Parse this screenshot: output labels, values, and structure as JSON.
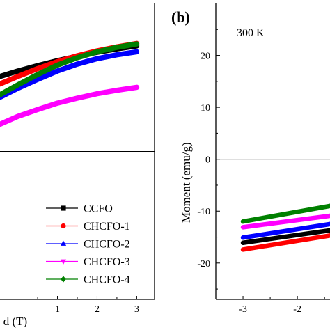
{
  "chart_data": [
    {
      "type": "line",
      "panel": "",
      "xlabel": "d (T)",
      "ylabel": "",
      "xlim": [
        -0.45,
        3.45
      ],
      "ylim": [
        -30,
        30
      ],
      "x_ticks": [
        1,
        2,
        3
      ],
      "x_tick_labels": [
        "1",
        "2",
        "3"
      ],
      "grid": false,
      "legend_position": "bottom-right",
      "series": [
        {
          "name": "CCFO",
          "color": "#000000",
          "marker": "square",
          "x": [
            -0.45,
            0,
            0.5,
            1,
            1.5,
            2,
            2.5,
            3
          ],
          "y": [
            15.2,
            16.3,
            17.4,
            18.4,
            19.3,
            20.1,
            20.8,
            21.4
          ]
        },
        {
          "name": "CHCFO-1",
          "color": "#ff0000",
          "marker": "circle",
          "x": [
            -0.45,
            0,
            0.5,
            1,
            1.5,
            2,
            2.5,
            3
          ],
          "y": [
            13.7,
            15.2,
            16.8,
            18.2,
            19.4,
            20.4,
            21.2,
            21.9
          ]
        },
        {
          "name": "CHCFO-2",
          "color": "#0000ff",
          "marker": "triangle-up",
          "x": [
            -0.45,
            0,
            0.5,
            1,
            1.5,
            2,
            2.5,
            3
          ],
          "y": [
            11.0,
            12.8,
            14.6,
            16.3,
            17.7,
            18.8,
            19.6,
            20.2
          ]
        },
        {
          "name": "CHCFO-3",
          "color": "#ff00ff",
          "marker": "triangle-down",
          "x": [
            -0.45,
            0,
            0.5,
            1,
            1.5,
            2,
            2.5,
            3
          ],
          "y": [
            5.5,
            7.1,
            8.5,
            9.8,
            10.8,
            11.7,
            12.4,
            13.0
          ]
        },
        {
          "name": "CHCFO-4",
          "color": "#008000",
          "marker": "diamond",
          "x": [
            -0.45,
            0,
            0.5,
            1,
            1.5,
            2,
            2.5,
            3
          ],
          "y": [
            11.5,
            13.5,
            15.6,
            17.5,
            19.0,
            20.2,
            21.1,
            21.8
          ]
        }
      ]
    },
    {
      "type": "line",
      "panel": "(b)",
      "annotation": "300 K",
      "xlabel": "",
      "ylabel": "Moment (emu/g)",
      "xlim": [
        -3.5,
        -1.4
      ],
      "ylim": [
        -27,
        30
      ],
      "x_ticks": [
        -3,
        -2
      ],
      "x_tick_labels": [
        "-3",
        "-2"
      ],
      "y_ticks": [
        -20,
        -10,
        0,
        10,
        20
      ],
      "y_tick_labels": [
        "-20",
        "-10",
        "0",
        "10",
        "20"
      ],
      "grid": false,
      "series": [
        {
          "name": "CCFO",
          "color": "#000000",
          "x": [
            -3,
            -1.4
          ],
          "y": [
            -16.1,
            -13.7
          ]
        },
        {
          "name": "CHCFO-1",
          "color": "#ff0000",
          "x": [
            -3,
            -1.4
          ],
          "y": [
            -17.4,
            -14.7
          ]
        },
        {
          "name": "CHCFO-2",
          "color": "#0000ff",
          "x": [
            -3,
            -1.4
          ],
          "y": [
            -15.1,
            -12.5
          ]
        },
        {
          "name": "CHCFO-3",
          "color": "#ff00ff",
          "x": [
            -3,
            -1.4
          ],
          "y": [
            -13.1,
            -10.9
          ]
        },
        {
          "name": "CHCFO-4",
          "color": "#008000",
          "x": [
            -3,
            -1.4
          ],
          "y": [
            -12.0,
            -9.0
          ]
        }
      ]
    }
  ]
}
